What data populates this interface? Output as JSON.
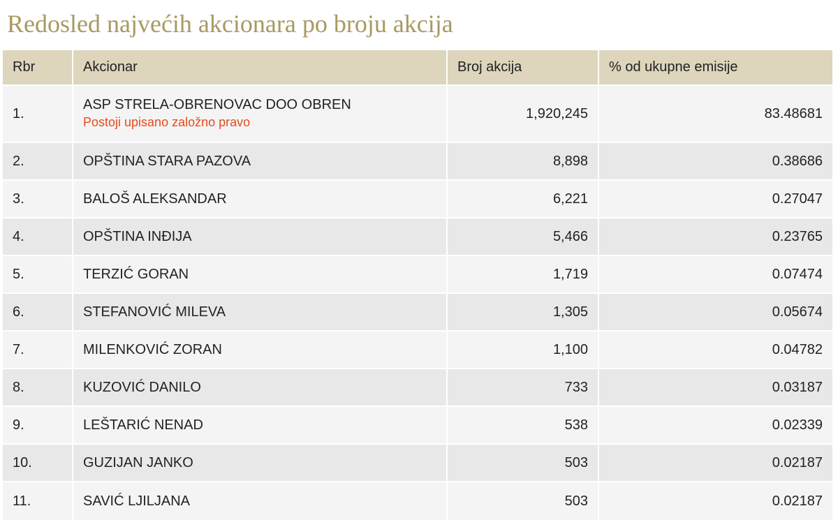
{
  "page": {
    "title": "Redosled najvećih akcionara po broju akcija"
  },
  "table": {
    "headers": {
      "rbr": "Rbr",
      "akcionar": "Akcionar",
      "broj_akcija": "Broj akcija",
      "procenat": "% od ukupne emisije"
    },
    "rows": [
      {
        "rbr": "1.",
        "akcionar": "ASP STRELA-OBRENOVAC DOO OBREN",
        "note": "Postoji upisano založno pravo",
        "broj_akcija": "1,920,245",
        "procenat": "83.48681"
      },
      {
        "rbr": "2.",
        "akcionar": "OPŠTINA STARA PAZOVA",
        "broj_akcija": "8,898",
        "procenat": "0.38686"
      },
      {
        "rbr": "3.",
        "akcionar": "BALOŠ ALEKSANDAR",
        "broj_akcija": "6,221",
        "procenat": "0.27047"
      },
      {
        "rbr": "4.",
        "akcionar": "OPŠTINA INĐIJA",
        "broj_akcija": "5,466",
        "procenat": "0.23765"
      },
      {
        "rbr": "5.",
        "akcionar": "TERZIĆ GORAN",
        "broj_akcija": "1,719",
        "procenat": "0.07474"
      },
      {
        "rbr": "6.",
        "akcionar": "STEFANOVIĆ MILEVA",
        "broj_akcija": "1,305",
        "procenat": "0.05674"
      },
      {
        "rbr": "7.",
        "akcionar": "MILENKOVIĆ ZORAN",
        "broj_akcija": "1,100",
        "procenat": "0.04782"
      },
      {
        "rbr": "8.",
        "akcionar": "KUZOVIĆ DANILO",
        "broj_akcija": "733",
        "procenat": "0.03187"
      },
      {
        "rbr": "9.",
        "akcionar": "LEŠTARIĆ NENAD",
        "broj_akcija": "538",
        "procenat": "0.02339"
      },
      {
        "rbr": "10.",
        "akcionar": "GUZIJAN JANKO",
        "broj_akcija": "503",
        "procenat": "0.02187"
      },
      {
        "rbr": "11.",
        "akcionar": "SAVIĆ LJILJANA",
        "broj_akcija": "503",
        "procenat": "0.02187"
      }
    ]
  },
  "colors": {
    "title": "#a89962",
    "header_background": "#ddd5bc",
    "row_light": "#f4f4f4",
    "row_dark": "#e8e8e8",
    "pledge_note": "#e8491b"
  }
}
